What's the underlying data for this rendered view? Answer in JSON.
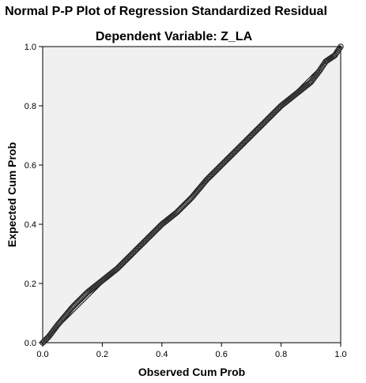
{
  "chart_data": {
    "type": "scatter",
    "title": "Normal P-P Plot of Regression Standardized Residual",
    "subtitle": "Dependent Variable: Z_LA",
    "xlabel": "Observed Cum Prob",
    "ylabel": "Expected Cum Prob",
    "xlim": [
      0,
      1
    ],
    "ylim": [
      0,
      1
    ],
    "xticks": [
      "0.0",
      "0.2",
      "0.4",
      "0.6",
      "0.8",
      "1.0"
    ],
    "yticks": [
      "0.0",
      "0.2",
      "0.4",
      "0.6",
      "0.8",
      "1.0"
    ],
    "grid": false,
    "reference_line": [
      [
        0,
        0
      ],
      [
        1,
        1
      ]
    ],
    "curve_anchors": [
      [
        0.0,
        0.0
      ],
      [
        0.02,
        0.02
      ],
      [
        0.05,
        0.06
      ],
      [
        0.1,
        0.12
      ],
      [
        0.15,
        0.17
      ],
      [
        0.2,
        0.21
      ],
      [
        0.25,
        0.25
      ],
      [
        0.3,
        0.3
      ],
      [
        0.35,
        0.35
      ],
      [
        0.4,
        0.4
      ],
      [
        0.45,
        0.44
      ],
      [
        0.5,
        0.49
      ],
      [
        0.55,
        0.55
      ],
      [
        0.6,
        0.6
      ],
      [
        0.65,
        0.65
      ],
      [
        0.7,
        0.7
      ],
      [
        0.75,
        0.75
      ],
      [
        0.8,
        0.8
      ],
      [
        0.85,
        0.84
      ],
      [
        0.9,
        0.88
      ],
      [
        0.93,
        0.92
      ],
      [
        0.95,
        0.95
      ],
      [
        0.98,
        0.97
      ],
      [
        1.0,
        1.0
      ]
    ],
    "colors": {
      "plot_background": "#f0f0f0",
      "marker_edge": "#2b2b2b",
      "frame": "#000000"
    }
  }
}
